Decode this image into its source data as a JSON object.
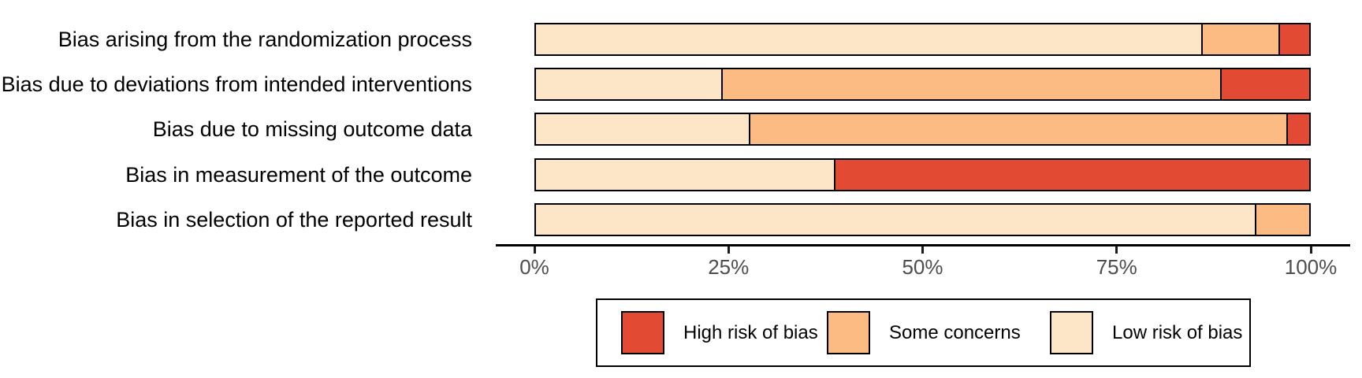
{
  "chart_data": {
    "type": "bar",
    "orientation": "horizontal",
    "stacked": true,
    "unit": "percent",
    "title": "",
    "xlabel": "",
    "ylabel": "",
    "categories": [
      "Bias arising from the randomization process",
      "Bias due to deviations from intended interventions",
      "Bias due to missing outcome data",
      "Bias in measurement of the outcome",
      "Bias in selection of the reported result"
    ],
    "series": [
      {
        "name": "Low risk of bias",
        "color": "#FDE5C8",
        "values": [
          86.0,
          24.0,
          27.5,
          38.5,
          93.0
        ]
      },
      {
        "name": "Some concerns",
        "color": "#FDBB84",
        "values": [
          10.0,
          64.5,
          69.5,
          0.0,
          7.0
        ]
      },
      {
        "name": "High risk of bias",
        "color": "#E34A33",
        "values": [
          4.0,
          11.5,
          3.0,
          61.5,
          0.0
        ]
      }
    ],
    "stack_order": "left-to-right: Low risk, Some concerns, High risk",
    "xlim": [
      0,
      100
    ],
    "x_ticks": [
      "0%",
      "25%",
      "50%",
      "75%",
      "100%"
    ],
    "grid": false,
    "bar_border_color": "#000000",
    "legend_position": "bottom",
    "legend": [
      {
        "label": "High risk of bias",
        "color": "#E34A33"
      },
      {
        "label": "Some concerns",
        "color": "#FDBB84"
      },
      {
        "label": "Low risk of bias",
        "color": "#FDE5C8"
      }
    ]
  },
  "colors": {
    "background": "#ffffff",
    "axis_line": "#000000",
    "tick_label": "#4d4d4d",
    "category_label": "#000000",
    "high_risk": "#E34A33",
    "some_concerns": "#FDBB84",
    "low_risk": "#FDE5C8"
  }
}
